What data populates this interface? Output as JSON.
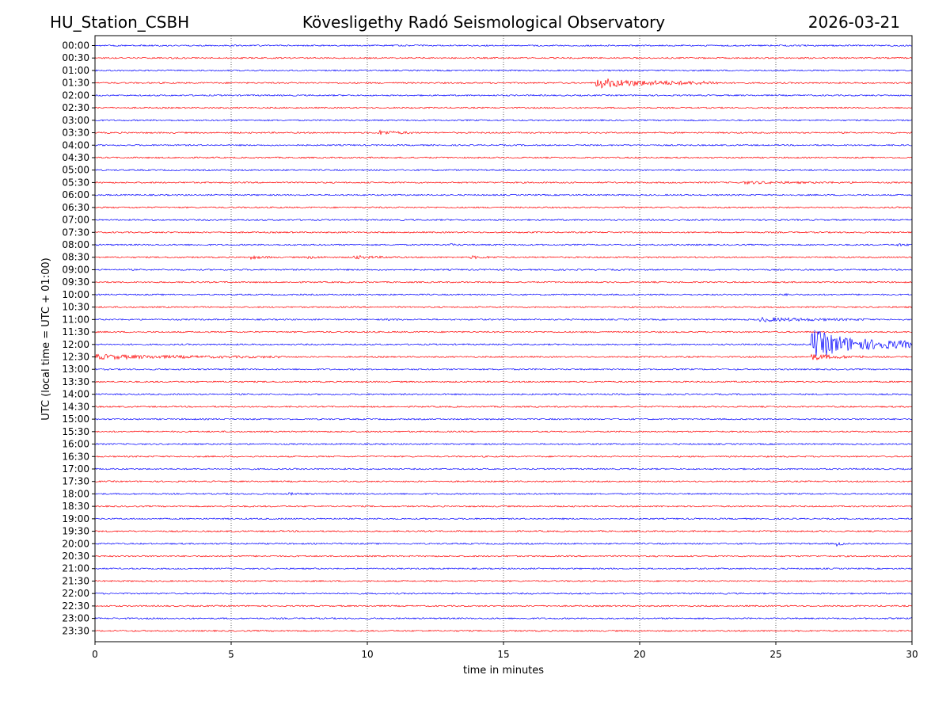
{
  "header": {
    "station": "HU_Station_CSBH",
    "observatory": "Kövesligethy Radó Seismological Observatory",
    "date": "2026-03-21"
  },
  "chart_data": {
    "type": "line",
    "title": "Kövesligethy Radó Seismological Observatory",
    "xlabel": "time in minutes",
    "ylabel": "UTC (local time = UTC + 01:00)",
    "xlim": [
      0,
      30
    ],
    "xticks": [
      "0",
      "5",
      "10",
      "15",
      "20",
      "25",
      "30"
    ],
    "grid": "vertical dotted at each 5 minutes",
    "trace_colors": [
      "#0000ff",
      "#ff0000"
    ],
    "row_labels": [
      "00:00",
      "00:30",
      "01:00",
      "01:30",
      "02:00",
      "02:30",
      "03:00",
      "03:30",
      "04:00",
      "04:30",
      "05:00",
      "05:30",
      "06:00",
      "06:30",
      "07:00",
      "07:30",
      "08:00",
      "08:30",
      "09:00",
      "09:30",
      "10:00",
      "10:30",
      "11:00",
      "11:30",
      "12:00",
      "12:30",
      "13:00",
      "13:30",
      "14:00",
      "14:30",
      "15:00",
      "15:30",
      "16:00",
      "16:30",
      "17:00",
      "17:30",
      "18:00",
      "18:30",
      "19:00",
      "19:30",
      "20:00",
      "20:30",
      "21:00",
      "21:30",
      "22:00",
      "22:30",
      "23:00",
      "23:30"
    ],
    "events": [
      {
        "row": "01:30",
        "start_min": 18.4,
        "end_min": 23.0,
        "amplitude": 1.0
      },
      {
        "row": "03:30",
        "start_min": 10.4,
        "end_min": 11.8,
        "amplitude": 0.45
      },
      {
        "row": "05:30",
        "start_min": 23.8,
        "end_min": 28.0,
        "amplitude": 0.2
      },
      {
        "row": "08:30",
        "start_min": 5.7,
        "end_min": 6.6,
        "amplitude": 0.3
      },
      {
        "row": "08:30",
        "start_min": 7.8,
        "end_min": 8.6,
        "amplitude": 0.25
      },
      {
        "row": "08:30",
        "start_min": 9.5,
        "end_min": 11.2,
        "amplitude": 0.3
      },
      {
        "row": "08:30",
        "start_min": 13.8,
        "end_min": 14.9,
        "amplitude": 0.25
      },
      {
        "row": "08:00",
        "start_min": 13.0,
        "end_min": 13.5,
        "amplitude": 0.2
      },
      {
        "row": "08:00",
        "start_min": 29.4,
        "end_min": 30.0,
        "amplitude": 0.25
      },
      {
        "row": "10:00",
        "start_min": 25.2,
        "end_min": 25.8,
        "amplitude": 0.15
      },
      {
        "row": "11:00",
        "start_min": 10.7,
        "end_min": 11.3,
        "amplitude": 0.15
      },
      {
        "row": "11:00",
        "start_min": 24.4,
        "end_min": 28.5,
        "amplitude": 0.4
      },
      {
        "row": "12:00",
        "start_min": 26.3,
        "end_min": 30.0,
        "amplitude": 3.2
      },
      {
        "row": "12:30",
        "start_min": 0.0,
        "end_min": 7.0,
        "amplitude": 0.45
      },
      {
        "row": "12:30",
        "start_min": 26.3,
        "end_min": 28.2,
        "amplitude": 0.6
      },
      {
        "row": "18:00",
        "start_min": 7.1,
        "end_min": 7.9,
        "amplitude": 0.2
      },
      {
        "row": "20:00",
        "start_min": 27.2,
        "end_min": 27.6,
        "amplitude": 0.5
      }
    ]
  }
}
